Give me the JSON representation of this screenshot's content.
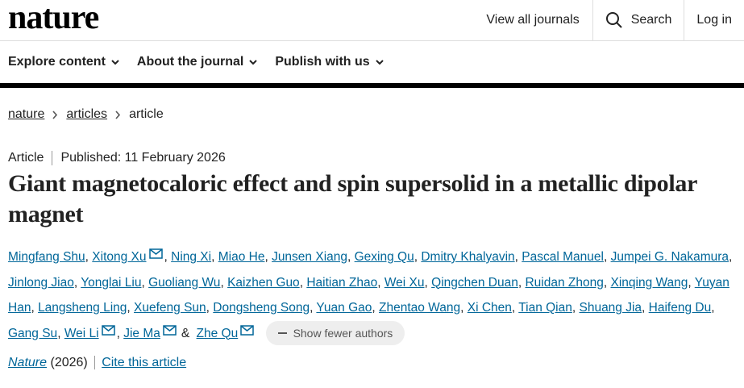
{
  "header": {
    "logo": "nature",
    "links": [
      "View all journals",
      "Search",
      "Log in"
    ]
  },
  "menu": [
    "Explore content",
    "About the journal",
    "Publish with us"
  ],
  "breadcrumb": [
    "nature",
    "articles",
    "article"
  ],
  "meta": {
    "type": "Article",
    "published": "Published: 11 February 2026"
  },
  "title": "Giant magnetocaloric effect and spin supersolid in a metallic dipolar magnet",
  "authors": [
    {
      "name": "Mingfang Shu",
      "sep": ","
    },
    {
      "name": "Xitong Xu",
      "sep": ",",
      "corresponding": true
    },
    {
      "name": "Ning Xi",
      "sep": ","
    },
    {
      "name": "Miao He",
      "sep": ","
    },
    {
      "name": "Junsen Xiang",
      "sep": ","
    },
    {
      "name": "Gexing Qu",
      "sep": ","
    },
    {
      "name": "Dmitry Khalyavin",
      "sep": ","
    },
    {
      "name": "Pascal Manuel",
      "sep": ","
    },
    {
      "name": "Jumpei G. Nakamura",
      "sep": ","
    },
    {
      "name": "Jinlong Jiao",
      "sep": ","
    },
    {
      "name": "Yonglai Liu",
      "sep": ","
    },
    {
      "name": "Guoliang Wu",
      "sep": ","
    },
    {
      "name": "Kaizhen Guo",
      "sep": ","
    },
    {
      "name": "Haitian Zhao",
      "sep": ","
    },
    {
      "name": "Wei Xu",
      "sep": ","
    },
    {
      "name": "Qingchen Duan",
      "sep": ","
    },
    {
      "name": "Ruidan Zhong",
      "sep": ","
    },
    {
      "name": "Xinqing Wang",
      "sep": ","
    },
    {
      "name": "Yuyan Han",
      "sep": ","
    },
    {
      "name": "Langsheng Ling",
      "sep": ","
    },
    {
      "name": "Xuefeng Sun",
      "sep": ","
    },
    {
      "name": "Dongsheng Song",
      "sep": ","
    },
    {
      "name": "Yuan Gao",
      "sep": ","
    },
    {
      "name": "Zhentao Wang",
      "sep": ","
    },
    {
      "name": "Xi Chen",
      "sep": ","
    },
    {
      "name": "Tian Qian",
      "sep": ","
    },
    {
      "name": "Shuang Jia",
      "sep": ","
    },
    {
      "name": "Haifeng Du",
      "sep": ","
    },
    {
      "name": "Gang Su",
      "sep": ","
    },
    {
      "name": "Wei Li",
      "sep": ",",
      "corresponding": true
    },
    {
      "name": "Jie Ma",
      "sep": "&",
      "corresponding": true
    },
    {
      "name": "Zhe Qu",
      "corresponding": true
    }
  ],
  "show_fewer": "Show fewer authors",
  "citation": {
    "journal": "Nature",
    "year": "(2026)",
    "cite": "Cite this article"
  }
}
